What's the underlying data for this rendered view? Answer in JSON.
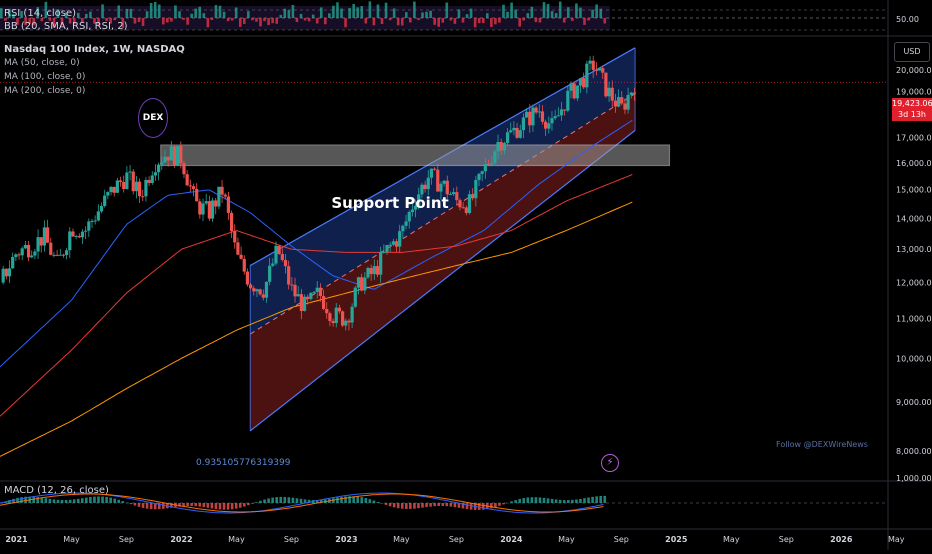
{
  "colors": {
    "background": "#000000",
    "up_candle": "#26a69a",
    "down_candle": "#ef5350",
    "channel_upper_fill": "#1e3a8a",
    "channel_lower_fill": "#7f1d1d",
    "channel_line": "#4a7bff",
    "support_box": "#d9d9d9",
    "ma50": "#2962ff",
    "ma100": "#e53935",
    "ma200": "#ff9800",
    "last_price": "#e0202c"
  },
  "top_panel": {
    "legend_rsi": "RSI (14, close)",
    "legend_bb": "BB (20, SMA, RSI, RSI, 2)",
    "axis_label": "50.00"
  },
  "main_panel": {
    "title": "Nasdaq 100 Index, 1W, NASDAQ",
    "legend_ma50": "MA (50, close, 0)",
    "legend_ma100": "MA (100, close, 0)",
    "legend_ma200": "MA (200, close, 0)",
    "currency": "USD",
    "last_price": "19,423.06",
    "countdown": "3d 13h",
    "support_label": "Support Point",
    "fib_label": "0.935105776319399",
    "watermark": "Follow @DEXWireNews",
    "logo_text": "DEX",
    "flash_icon": "⚡"
  },
  "macd_panel": {
    "legend": "MACD (12, 26, close)",
    "axis_label": "1,000.00"
  },
  "chart_data": {
    "type": "candlestick",
    "title": "Nasdaq 100 Index, 1W, NASDAQ",
    "ylim": [
      7500,
      21500
    ],
    "y_ticks": [
      8000,
      9000,
      10000,
      11000,
      12000,
      13000,
      14000,
      15000,
      16000,
      17000,
      18000,
      19000,
      20000
    ],
    "y_tick_labels": [
      "8,000.00",
      "9,000.00",
      "10,000.00",
      "11,000.00",
      "12,000.00",
      "13,000.00",
      "14,000.00",
      "15,000.00",
      "16,000.00",
      "17,000.00",
      "18,000.00",
      "19,000.00",
      "20,000.00"
    ],
    "x_tick_labels": [
      "2021",
      "May",
      "Sep",
      "2022",
      "May",
      "Sep",
      "2023",
      "May",
      "Sep",
      "2024",
      "May",
      "Sep",
      "2025",
      "May",
      "Sep",
      "2026",
      "May"
    ],
    "x_tick_months": [
      0,
      4,
      8,
      12,
      16,
      20,
      24,
      28,
      32,
      36,
      40,
      44,
      48,
      52,
      56,
      60,
      64
    ],
    "x_month_range": [
      -1.2,
      66.6
    ],
    "bold_years": [
      "2021",
      "2022",
      "2023",
      "2024",
      "2025",
      "2026"
    ],
    "price_path": [
      [
        -1.2,
        12000
      ],
      [
        0,
        12900
      ],
      [
        1,
        13100
      ],
      [
        2,
        13400
      ],
      [
        3,
        12500
      ],
      [
        4,
        13700
      ],
      [
        5,
        13600
      ],
      [
        6,
        14300
      ],
      [
        7,
        15000
      ],
      [
        8,
        15500
      ],
      [
        9,
        14800
      ],
      [
        10,
        16000
      ],
      [
        11,
        16400
      ],
      [
        12,
        16200
      ],
      [
        13,
        14500
      ],
      [
        14,
        14200
      ],
      [
        15,
        15000
      ],
      [
        16,
        12800
      ],
      [
        17,
        12000
      ],
      [
        18,
        11800
      ],
      [
        19,
        13000
      ],
      [
        20,
        11800
      ],
      [
        21,
        11300
      ],
      [
        22,
        11700
      ],
      [
        23,
        11100
      ],
      [
        24,
        11000
      ],
      [
        25,
        12000
      ],
      [
        26,
        12300
      ],
      [
        27,
        13000
      ],
      [
        28,
        13500
      ],
      [
        29,
        14700
      ],
      [
        30,
        15500
      ],
      [
        31,
        15200
      ],
      [
        32,
        14600
      ],
      [
        33,
        14500
      ],
      [
        34,
        15700
      ],
      [
        35,
        16800
      ],
      [
        36,
        17200
      ],
      [
        37,
        17700
      ],
      [
        38,
        18200
      ],
      [
        39,
        17400
      ],
      [
        40,
        18700
      ],
      [
        41,
        19400
      ],
      [
        42,
        20300
      ],
      [
        43,
        19000
      ],
      [
        44,
        18200
      ],
      [
        45,
        19423
      ]
    ],
    "series": [
      {
        "name": "MA (50, close, 0)",
        "points": [
          [
            -1.2,
            9800
          ],
          [
            4,
            11500
          ],
          [
            8,
            13800
          ],
          [
            11,
            14800
          ],
          [
            14,
            15000
          ],
          [
            17,
            14200
          ],
          [
            20,
            13100
          ],
          [
            23,
            12200
          ],
          [
            26,
            11800
          ],
          [
            30,
            12700
          ],
          [
            34,
            13600
          ],
          [
            38,
            15200
          ],
          [
            42,
            16700
          ],
          [
            45,
            17800
          ]
        ]
      },
      {
        "name": "MA (100, close, 0)",
        "points": [
          [
            -1.2,
            8700
          ],
          [
            4,
            10200
          ],
          [
            8,
            11700
          ],
          [
            12,
            13000
          ],
          [
            16,
            13600
          ],
          [
            20,
            13000
          ],
          [
            24,
            12900
          ],
          [
            28,
            12900
          ],
          [
            32,
            13100
          ],
          [
            36,
            13600
          ],
          [
            40,
            14600
          ],
          [
            45,
            15600
          ]
        ]
      },
      {
        "name": "MA (200, close, 0)",
        "points": [
          [
            -1.2,
            7900
          ],
          [
            4,
            8600
          ],
          [
            8,
            9300
          ],
          [
            12,
            10000
          ],
          [
            16,
            10700
          ],
          [
            20,
            11300
          ],
          [
            24,
            11700
          ],
          [
            28,
            12100
          ],
          [
            32,
            12500
          ],
          [
            36,
            12900
          ],
          [
            40,
            13600
          ],
          [
            45,
            14600
          ]
        ]
      }
    ],
    "channel": {
      "upper": [
        [
          17,
          12500
        ],
        [
          45,
          21100
        ]
      ],
      "middle": [
        [
          17,
          10600
        ],
        [
          45,
          18900
        ]
      ],
      "lower": [
        [
          17,
          8400
        ],
        [
          45,
          17300
        ]
      ]
    },
    "support_zone": [
      15900,
      16700
    ],
    "support_zone_months": [
      10.5,
      47.5
    ],
    "last_price": 19423.06,
    "rsi_level": 50,
    "macd_level": 1000
  }
}
